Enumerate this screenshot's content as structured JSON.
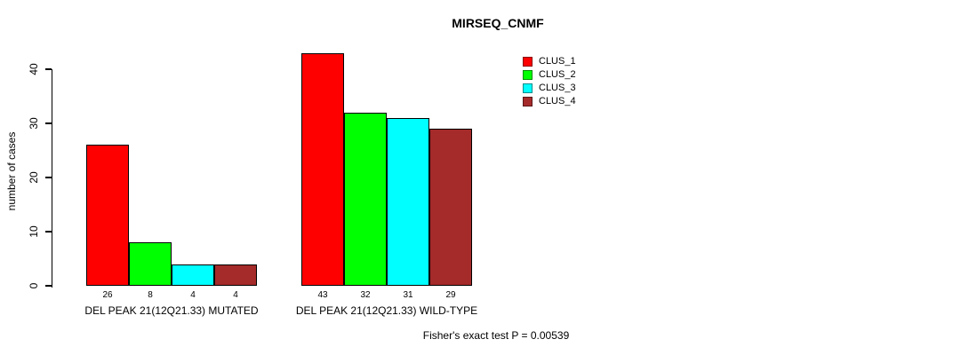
{
  "chart_data": {
    "type": "bar",
    "title": "MIRSEQ_CNMF",
    "ylabel": "number of cases",
    "xlabel": "",
    "ylim": [
      0,
      43
    ],
    "yticks": [
      0,
      10,
      20,
      30,
      40
    ],
    "grid": false,
    "legend_position": "top-right",
    "categories": [
      "DEL PEAK 21(12Q21.33) MUTATED",
      "DEL PEAK 21(12Q21.33) WILD-TYPE"
    ],
    "series": [
      {
        "name": "CLUS_1",
        "color": "#FF0000",
        "values": [
          26,
          43
        ]
      },
      {
        "name": "CLUS_2",
        "color": "#00FF00",
        "values": [
          8,
          32
        ]
      },
      {
        "name": "CLUS_3",
        "color": "#00FFFF",
        "values": [
          4,
          31
        ]
      },
      {
        "name": "CLUS_4",
        "color": "#A52A2A",
        "values": [
          4,
          29
        ]
      }
    ],
    "bar_value_labels": [
      [
        26,
        8,
        4,
        4
      ],
      [
        43,
        32,
        31,
        29
      ]
    ],
    "annotation": "Fisher's exact test P = 0.00539"
  }
}
